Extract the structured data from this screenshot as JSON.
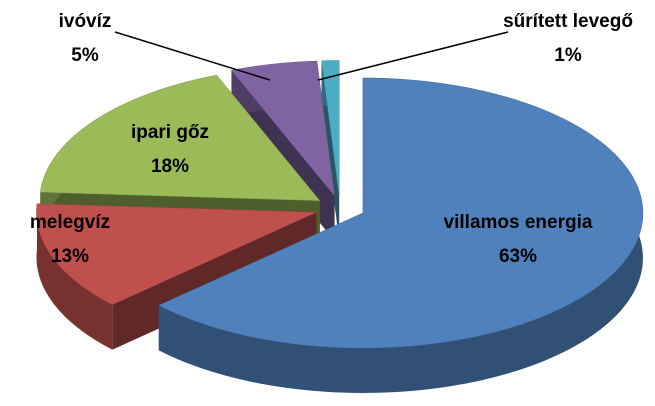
{
  "chart_data": {
    "type": "pie3d",
    "categories": [
      "villamos energia",
      "melegvíz",
      "ipari gőz",
      "ivóvíz",
      "sűrített levegő"
    ],
    "values": [
      63,
      13,
      18,
      5,
      1
    ],
    "value_labels": [
      "63%",
      "13%",
      "18%",
      "5%",
      "1%"
    ],
    "colors": [
      "#4f81bd",
      "#c0504d",
      "#9bbb59",
      "#8064a2",
      "#4bacc6"
    ]
  }
}
